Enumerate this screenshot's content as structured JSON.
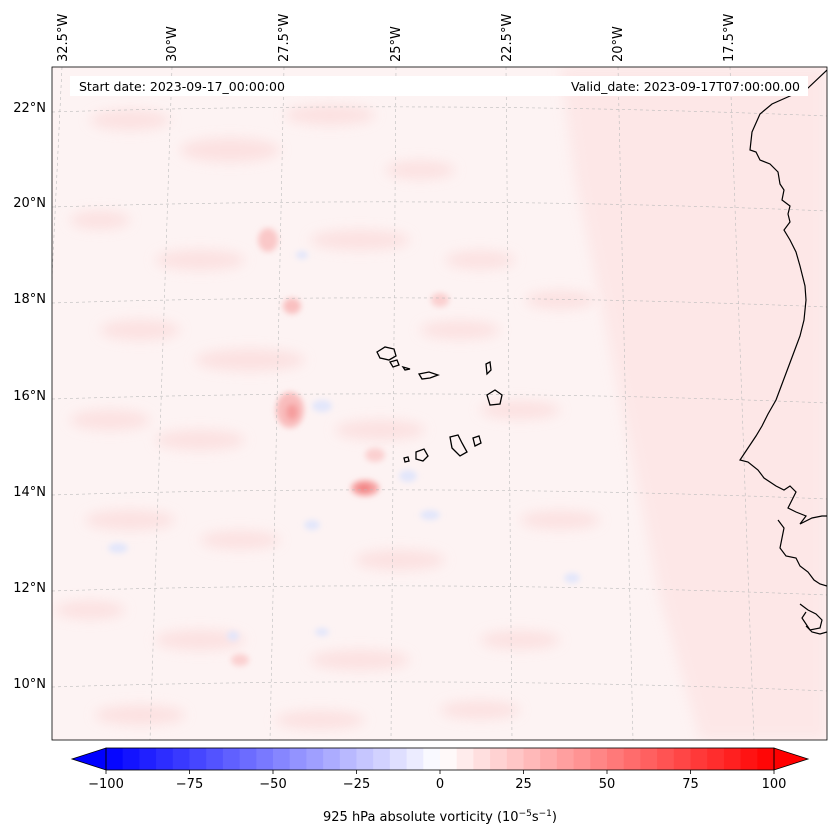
{
  "header": {
    "start_date": "Start date: 2023-09-17_00:00:00",
    "valid_date": "Valid_date: 2023-09-17T07:00:00.00"
  },
  "axes": {
    "lon_labels": [
      "32.5°W",
      "30°W",
      "27.5°W",
      "25°W",
      "22.5°W",
      "20°W",
      "17.5°W"
    ],
    "lat_labels": [
      "22°N",
      "20°N",
      "18°N",
      "16°N",
      "14°N",
      "12°N",
      "10°N"
    ],
    "gridlines": "dashed"
  },
  "colorbar": {
    "label_prefix": "925 hPa absolute vorticity (10",
    "label_exp1": "−5",
    "label_mid": "s",
    "label_exp2": "−1",
    "label_suffix": ")",
    "ticks": [
      "−100",
      "−75",
      "−50",
      "−25",
      "0",
      "25",
      "50",
      "75",
      "100"
    ],
    "min": -100,
    "max": 100,
    "colormap": "bwr",
    "extend": "both",
    "low_color": "#0000ff",
    "mid_color": "#ffffff",
    "high_color": "#ff0000"
  },
  "map": {
    "projection": "lambert conformal",
    "field_background": "#fdf3f3",
    "coastline_color": "#000000",
    "islands": "Cape Verde",
    "coast": "West Africa"
  }
}
